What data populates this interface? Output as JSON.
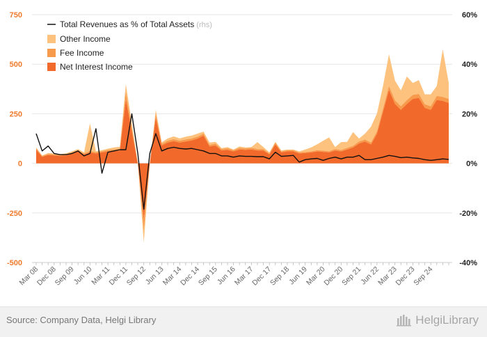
{
  "chart_data": {
    "type": "area",
    "title": "",
    "xlabel": "",
    "ylabel": "",
    "ylim_left": [
      -500,
      750
    ],
    "ylim_right": [
      -0.4,
      0.6
    ],
    "yticks_left": [
      "750",
      "500",
      "250",
      "0",
      "-250",
      "-500"
    ],
    "yticks_right": [
      "60%",
      "40%",
      "20%",
      "0%",
      "-20%",
      "-40%"
    ],
    "grid": true,
    "legend_position": "top-left",
    "x_tick_labels": [
      "Mar 08",
      "Dec 08",
      "Sep 09",
      "Jun 10",
      "Mar 11",
      "Dec 11",
      "Sep 12",
      "Jun 13",
      "Mar 14",
      "Dec 14",
      "Sep 15",
      "Jun 16",
      "Mar 17",
      "Dec 17",
      "Sep 18",
      "Jun 19",
      "Mar 20",
      "Dec 20",
      "Sep 21",
      "Jun 22",
      "Mar 23",
      "Dec 23",
      "Sep 24"
    ],
    "x_start_quarter": "Mar 08",
    "series": [
      {
        "name": "Net Interest Income",
        "axis": "left",
        "style": "stacked-area",
        "color": "#f26a2b",
        "values": [
          70,
          33,
          42,
          40,
          38,
          40,
          50,
          60,
          45,
          55,
          50,
          55,
          60,
          62,
          65,
          320,
          160,
          0,
          -280,
          0,
          230,
          90,
          105,
          112,
          105,
          110,
          115,
          125,
          140,
          85,
          90,
          65,
          68,
          60,
          70,
          68,
          70,
          65,
          65,
          45,
          95,
          55,
          60,
          60,
          50,
          52,
          55,
          60,
          58,
          55,
          65,
          60,
          70,
          80,
          100,
          110,
          95,
          150,
          260,
          370,
          300,
          270,
          300,
          325,
          330,
          280,
          270,
          320,
          315,
          305
        ]
      },
      {
        "name": "Fee Income",
        "axis": "left",
        "style": "stacked-area",
        "color": "#f89a4b",
        "values": [
          5,
          3,
          5,
          5,
          4,
          5,
          5,
          6,
          5,
          8,
          6,
          6,
          8,
          8,
          9,
          40,
          18,
          0,
          -60,
          0,
          20,
          8,
          9,
          10,
          9,
          10,
          10,
          10,
          10,
          8,
          9,
          7,
          8,
          6,
          8,
          7,
          8,
          7,
          7,
          5,
          9,
          5,
          6,
          6,
          5,
          5,
          5,
          6,
          6,
          6,
          7,
          7,
          8,
          8,
          10,
          10,
          10,
          12,
          15,
          20,
          18,
          18,
          18,
          20,
          20,
          18,
          18,
          20,
          20,
          20
        ]
      },
      {
        "name": "Other Income",
        "axis": "left",
        "style": "stacked-area",
        "color": "#fdc27e",
        "values": [
          5,
          4,
          5,
          5,
          4,
          6,
          6,
          6,
          5,
          138,
          5,
          5,
          6,
          10,
          10,
          40,
          25,
          0,
          -60,
          0,
          20,
          8,
          12,
          14,
          12,
          14,
          15,
          15,
          10,
          12,
          10,
          5,
          6,
          4,
          7,
          5,
          4,
          35,
          10,
          5,
          5,
          5,
          4,
          4,
          5,
          13,
          20,
          30,
          50,
          70,
          10,
          40,
          30,
          70,
          15,
          30,
          80,
          90,
          115,
          160,
          100,
          80,
          120,
          60,
          70,
          50,
          60,
          50,
          240,
          80
        ]
      },
      {
        "name": "Total Revenues as % of Total Assets",
        "label_suffix": "(rhs)",
        "axis": "right",
        "style": "line",
        "color": "#111111",
        "values": [
          0.12,
          0.05,
          0.07,
          0.04,
          0.035,
          0.035,
          0.04,
          0.05,
          0.03,
          0.04,
          0.14,
          -0.04,
          0.045,
          0.05,
          0.055,
          0.055,
          0.2,
          0.04,
          -0.185,
          0.04,
          0.12,
          0.05,
          0.06,
          0.065,
          0.06,
          0.058,
          0.06,
          0.055,
          0.05,
          0.04,
          0.04,
          0.03,
          0.03,
          0.025,
          0.03,
          0.028,
          0.028,
          0.027,
          0.027,
          0.018,
          0.045,
          0.028,
          0.03,
          0.032,
          0.005,
          0.015,
          0.018,
          0.02,
          0.012,
          0.02,
          0.025,
          0.018,
          0.025,
          0.025,
          0.032,
          0.015,
          0.015,
          0.02,
          0.025,
          0.032,
          0.028,
          0.023,
          0.025,
          0.022,
          0.02,
          0.015,
          0.012,
          0.015,
          0.018,
          0.016
        ]
      }
    ]
  },
  "footer": {
    "source": "Source: Company Data, Helgi Library",
    "brand": "HelgiLibrary"
  }
}
